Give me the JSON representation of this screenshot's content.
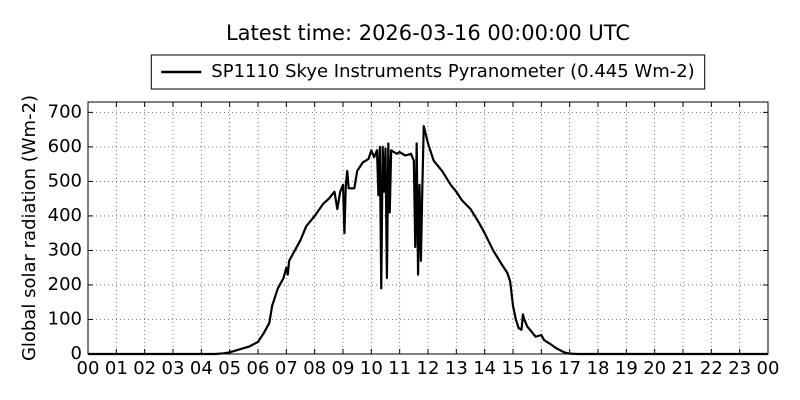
{
  "chart_data": {
    "type": "line",
    "title": "Latest time: 2026-03-16 00:00:00 UTC",
    "y_label": "Global solar radiation (Wm-2)",
    "legend_position": "upper center",
    "grid": true,
    "x": [
      0,
      4.5,
      4.8,
      5.0,
      5.3,
      5.7,
      6.0,
      6.2,
      6.4,
      6.5,
      6.7,
      6.9,
      7.0,
      7.05,
      7.1,
      7.3,
      7.5,
      7.7,
      8.0,
      8.3,
      8.5,
      8.7,
      8.8,
      8.9,
      9.0,
      9.05,
      9.1,
      9.15,
      9.2,
      9.4,
      9.5,
      9.7,
      9.9,
      10.0,
      10.1,
      10.2,
      10.25,
      10.3,
      10.35,
      10.4,
      10.45,
      10.5,
      10.55,
      10.6,
      10.65,
      10.7,
      10.9,
      11.0,
      11.2,
      11.4,
      11.5,
      11.55,
      11.6,
      11.65,
      11.7,
      11.75,
      11.8,
      11.85,
      12.0,
      12.2,
      12.5,
      12.8,
      13.0,
      13.2,
      13.5,
      13.8,
      14.0,
      14.3,
      14.6,
      14.8,
      14.9,
      15.0,
      15.1,
      15.2,
      15.3,
      15.35,
      15.4,
      15.5,
      15.7,
      15.8,
      16.0,
      16.1,
      16.3,
      16.5,
      16.8,
      17.0,
      17.3,
      24
    ],
    "series": [
      {
        "name": "SP1110 Skye Instruments Pyranometer (0.445 Wm-2)",
        "color": "#000000",
        "values": [
          0,
          0,
          2,
          5,
          12,
          22,
          35,
          60,
          90,
          140,
          190,
          220,
          250,
          230,
          270,
          300,
          330,
          370,
          400,
          435,
          450,
          470,
          420,
          470,
          490,
          350,
          490,
          530,
          480,
          480,
          530,
          555,
          565,
          590,
          570,
          590,
          460,
          600,
          190,
          600,
          470,
          595,
          220,
          610,
          410,
          590,
          580,
          585,
          575,
          580,
          560,
          310,
          610,
          230,
          490,
          270,
          480,
          660,
          610,
          560,
          530,
          490,
          470,
          445,
          420,
          380,
          350,
          300,
          260,
          235,
          210,
          140,
          100,
          75,
          70,
          115,
          100,
          80,
          60,
          50,
          55,
          40,
          30,
          18,
          5,
          1,
          0,
          0
        ]
      }
    ],
    "xlim": [
      0,
      24
    ],
    "xticks": [
      {
        "value": 0,
        "label": "00"
      },
      {
        "value": 1,
        "label": "01"
      },
      {
        "value": 2,
        "label": "02"
      },
      {
        "value": 3,
        "label": "03"
      },
      {
        "value": 4,
        "label": "04"
      },
      {
        "value": 5,
        "label": "05"
      },
      {
        "value": 6,
        "label": "06"
      },
      {
        "value": 7,
        "label": "07"
      },
      {
        "value": 8,
        "label": "08"
      },
      {
        "value": 9,
        "label": "09"
      },
      10,
      11,
      12,
      13,
      14,
      15,
      16,
      17,
      18,
      19,
      20,
      21,
      22,
      23,
      {
        "value": 24,
        "label": "00"
      }
    ],
    "ylim": [
      0,
      730
    ],
    "yticks": [
      0,
      100,
      200,
      300,
      400,
      500,
      600,
      700
    ]
  }
}
